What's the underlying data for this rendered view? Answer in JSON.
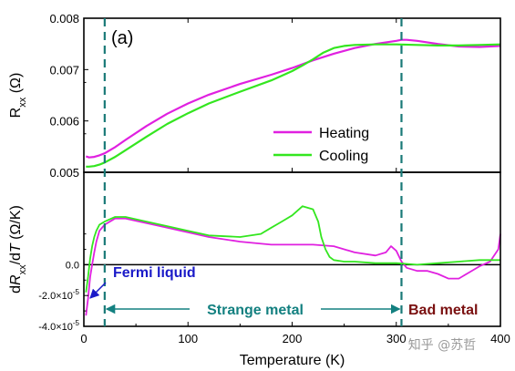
{
  "colors": {
    "heating": "#e020e0",
    "cooling": "#33e61f",
    "dashed": "#1a7a78",
    "fermi": "#1a1ac8",
    "strange": "#138080",
    "bad": "#7a1010",
    "zero_line": "#000000"
  },
  "panel_label": "(a)",
  "watermark": "知乎 @苏哲",
  "chart_data": [
    {
      "type": "line",
      "panel": "top",
      "xlim": [
        0,
        400
      ],
      "ylim": [
        0.005,
        0.008
      ],
      "yticks": [
        0.005,
        0.006,
        0.007,
        0.008
      ],
      "ytick_labels": [
        "0.005",
        "0.006",
        "0.007",
        "0.008"
      ],
      "ylabel": "R_xx (Ω)",
      "ylabel_main": "R",
      "ylabel_sub": "xx",
      "ylabel_unit": " (Ω)",
      "series": [
        {
          "name": "Heating",
          "color_key": "heating",
          "x": [
            2,
            5,
            10,
            15,
            20,
            30,
            40,
            60,
            80,
            100,
            120,
            150,
            180,
            200,
            220,
            240,
            260,
            280,
            300,
            305,
            310,
            320,
            340,
            360,
            380,
            400
          ],
          "y": [
            0.00531,
            0.00529,
            0.0053,
            0.00533,
            0.00537,
            0.00549,
            0.00563,
            0.0059,
            0.00614,
            0.00634,
            0.00651,
            0.00672,
            0.0069,
            0.00703,
            0.00718,
            0.00731,
            0.00742,
            0.0075,
            0.00756,
            0.00758,
            0.00758,
            0.00756,
            0.0075,
            0.00745,
            0.00744,
            0.00746
          ]
        },
        {
          "name": "Cooling",
          "color_key": "cooling",
          "x": [
            2,
            5,
            10,
            15,
            20,
            30,
            40,
            60,
            80,
            100,
            120,
            150,
            180,
            200,
            210,
            220,
            230,
            240,
            250,
            260,
            280,
            300,
            320,
            340,
            360,
            380,
            400
          ],
          "y": [
            0.00511,
            0.00511,
            0.00512,
            0.00515,
            0.00519,
            0.0053,
            0.00543,
            0.00569,
            0.00594,
            0.00615,
            0.00634,
            0.00657,
            0.00679,
            0.00697,
            0.00708,
            0.0072,
            0.00733,
            0.00742,
            0.00746,
            0.00748,
            0.00749,
            0.00749,
            0.00748,
            0.00747,
            0.00747,
            0.00748,
            0.00749
          ]
        }
      ],
      "legend": [
        "Heating",
        "Cooling"
      ],
      "legend_position": "lower-right"
    },
    {
      "type": "line",
      "panel": "bottom",
      "xlim": [
        0,
        400
      ],
      "ylim": [
        -4e-05,
        6e-05
      ],
      "xticks": [
        0,
        100,
        200,
        300,
        400
      ],
      "xtick_labels": [
        "0",
        "100",
        "200",
        "300",
        "400"
      ],
      "xlabel": "Temperature (K)",
      "yticks": [
        -4e-05,
        -2e-05,
        0.0
      ],
      "ylabel": "dR_xx/dT (Ω/K)",
      "series": [
        {
          "name": "Heating",
          "color_key": "heating",
          "x": [
            2,
            4,
            6,
            8,
            10,
            12,
            15,
            20,
            30,
            40,
            60,
            80,
            100,
            120,
            150,
            180,
            200,
            220,
            240,
            260,
            280,
            290,
            295,
            300,
            305,
            310,
            320,
            330,
            340,
            350,
            360,
            370,
            380,
            390,
            398,
            400
          ],
          "y": [
            -3.3e-05,
            -2.2e-05,
            -8e-06,
            0.0,
            8e-06,
            1.5e-05,
            2.2e-05,
            2.6e-05,
            3e-05,
            3e-05,
            2.7e-05,
            2.4e-05,
            2.1e-05,
            1.8e-05,
            1.5e-05,
            1.3e-05,
            1.3e-05,
            1.3e-05,
            1.2e-05,
            8e-06,
            6e-06,
            8e-06,
            1.2e-05,
            9e-06,
            2e-06,
            -2e-06,
            -4e-06,
            -4e-06,
            -6e-06,
            -9e-06,
            -9e-06,
            -5e-06,
            -1e-06,
            2e-06,
            1e-05,
            2e-05
          ]
        },
        {
          "name": "Cooling",
          "color_key": "cooling",
          "x": [
            2,
            4,
            6,
            8,
            10,
            12,
            15,
            20,
            30,
            40,
            60,
            80,
            100,
            120,
            150,
            170,
            180,
            190,
            200,
            210,
            220,
            225,
            228,
            232,
            236,
            240,
            250,
            260,
            280,
            300,
            320,
            340,
            360,
            380,
            400
          ],
          "y": [
            -1.8e-05,
            -8e-06,
            4e-06,
            1.2e-05,
            1.8e-05,
            2.2e-05,
            2.6e-05,
            2.8e-05,
            3.1e-05,
            3.1e-05,
            2.8e-05,
            2.5e-05,
            2.2e-05,
            1.9e-05,
            1.8e-05,
            2e-05,
            2.4e-05,
            2.8e-05,
            3.2e-05,
            3.8e-05,
            3.6e-05,
            2.8e-05,
            1.8e-05,
            1e-05,
            5e-06,
            3e-06,
            2e-06,
            2e-06,
            1e-06,
            1e-06,
            0.0,
            1e-06,
            2e-06,
            3e-06,
            3e-06
          ]
        }
      ]
    }
  ],
  "dashed_lines_x": [
    20,
    305
  ],
  "regions": {
    "fermi_liquid": "Fermi liquid",
    "strange_metal": "Strange metal",
    "bad_metal": "Bad metal"
  }
}
